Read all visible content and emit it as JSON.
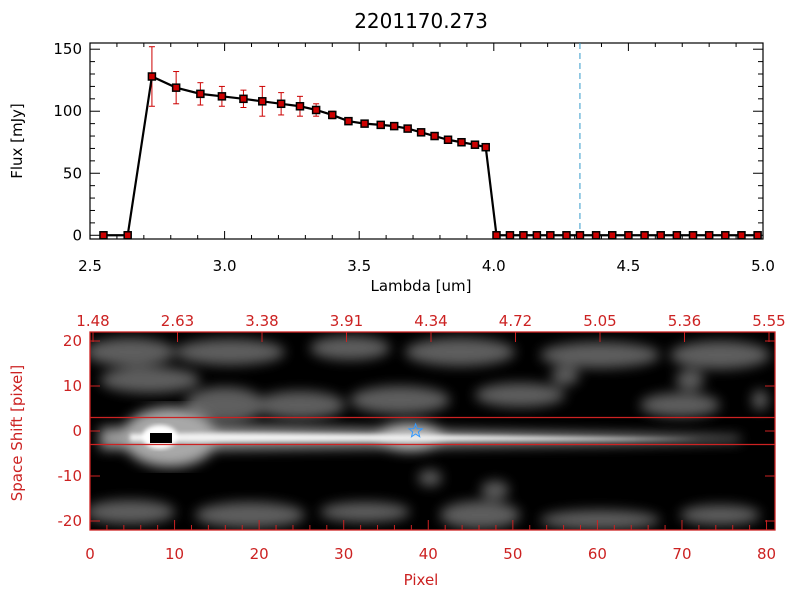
{
  "chart_data": [
    {
      "type": "line",
      "title": "2201170.273",
      "xlabel": "Lambda [um]",
      "ylabel": "Flux [mJy]",
      "xlim": [
        2.5,
        5.0
      ],
      "ylim": [
        -3,
        155
      ],
      "xticks": [
        "2.5",
        "3.0",
        "3.5",
        "4.0",
        "4.5",
        "5.0"
      ],
      "yticks": [
        "0",
        "50",
        "100",
        "150"
      ],
      "colors": {
        "line": "#000000",
        "marker": "#cc0000",
        "errorbar": "#cc0000",
        "dashed_marker_line": "#3399cc"
      },
      "series": [
        {
          "x": [
            2.55,
            2.64,
            2.73,
            2.82,
            2.91,
            2.99,
            3.07,
            3.14,
            3.21,
            3.28,
            3.34,
            3.4,
            3.46,
            3.52,
            3.58,
            3.63,
            3.68,
            3.73,
            3.78,
            3.83,
            3.88,
            3.93,
            3.97,
            4.01,
            4.06,
            4.11,
            4.16,
            4.21,
            4.27,
            4.32,
            4.38,
            4.44,
            4.5,
            4.56,
            4.62,
            4.68,
            4.74,
            4.8,
            4.86,
            4.92,
            4.98
          ],
          "values": [
            0,
            0,
            128,
            119,
            114,
            112,
            110,
            108,
            106,
            104,
            101,
            97,
            92,
            90,
            89,
            88,
            86,
            83,
            80,
            77,
            75,
            73,
            71,
            0,
            0,
            0,
            0,
            0,
            0,
            0,
            0,
            0,
            0,
            0,
            0,
            0,
            0,
            0,
            0,
            0,
            0
          ],
          "errors": [
            0,
            0,
            24,
            13,
            9,
            8,
            7,
            12,
            9,
            8,
            5,
            3,
            2,
            2,
            2,
            2,
            2,
            2,
            2,
            2,
            2,
            2,
            2,
            0,
            0,
            0,
            0,
            0,
            0,
            0,
            0,
            0,
            0,
            0,
            0,
            0,
            0,
            0,
            0,
            0,
            0
          ]
        }
      ],
      "vertical_line_x": 4.32
    },
    {
      "type": "heatmap",
      "xlabel": "Pixel",
      "ylabel": "Space Shift [pixel]",
      "xlim": [
        0,
        81
      ],
      "ylim": [
        -22,
        22
      ],
      "xticks": [
        "0",
        "10",
        "20",
        "30",
        "40",
        "50",
        "60",
        "70",
        "80"
      ],
      "yticks": [
        "-20",
        "-10",
        "0",
        "10",
        "20"
      ],
      "top_axis_ticks": [
        "1.48",
        "2.63",
        "3.38",
        "3.91",
        "4.34",
        "4.72",
        "5.05",
        "5.36",
        "5.55"
      ],
      "extraction_window": [
        -3,
        3
      ],
      "source_marker": {
        "x": 38.5,
        "y": 0
      },
      "colors": {
        "axis": "#cc2222",
        "background": "#000000",
        "star": "#3399ff"
      }
    }
  ]
}
